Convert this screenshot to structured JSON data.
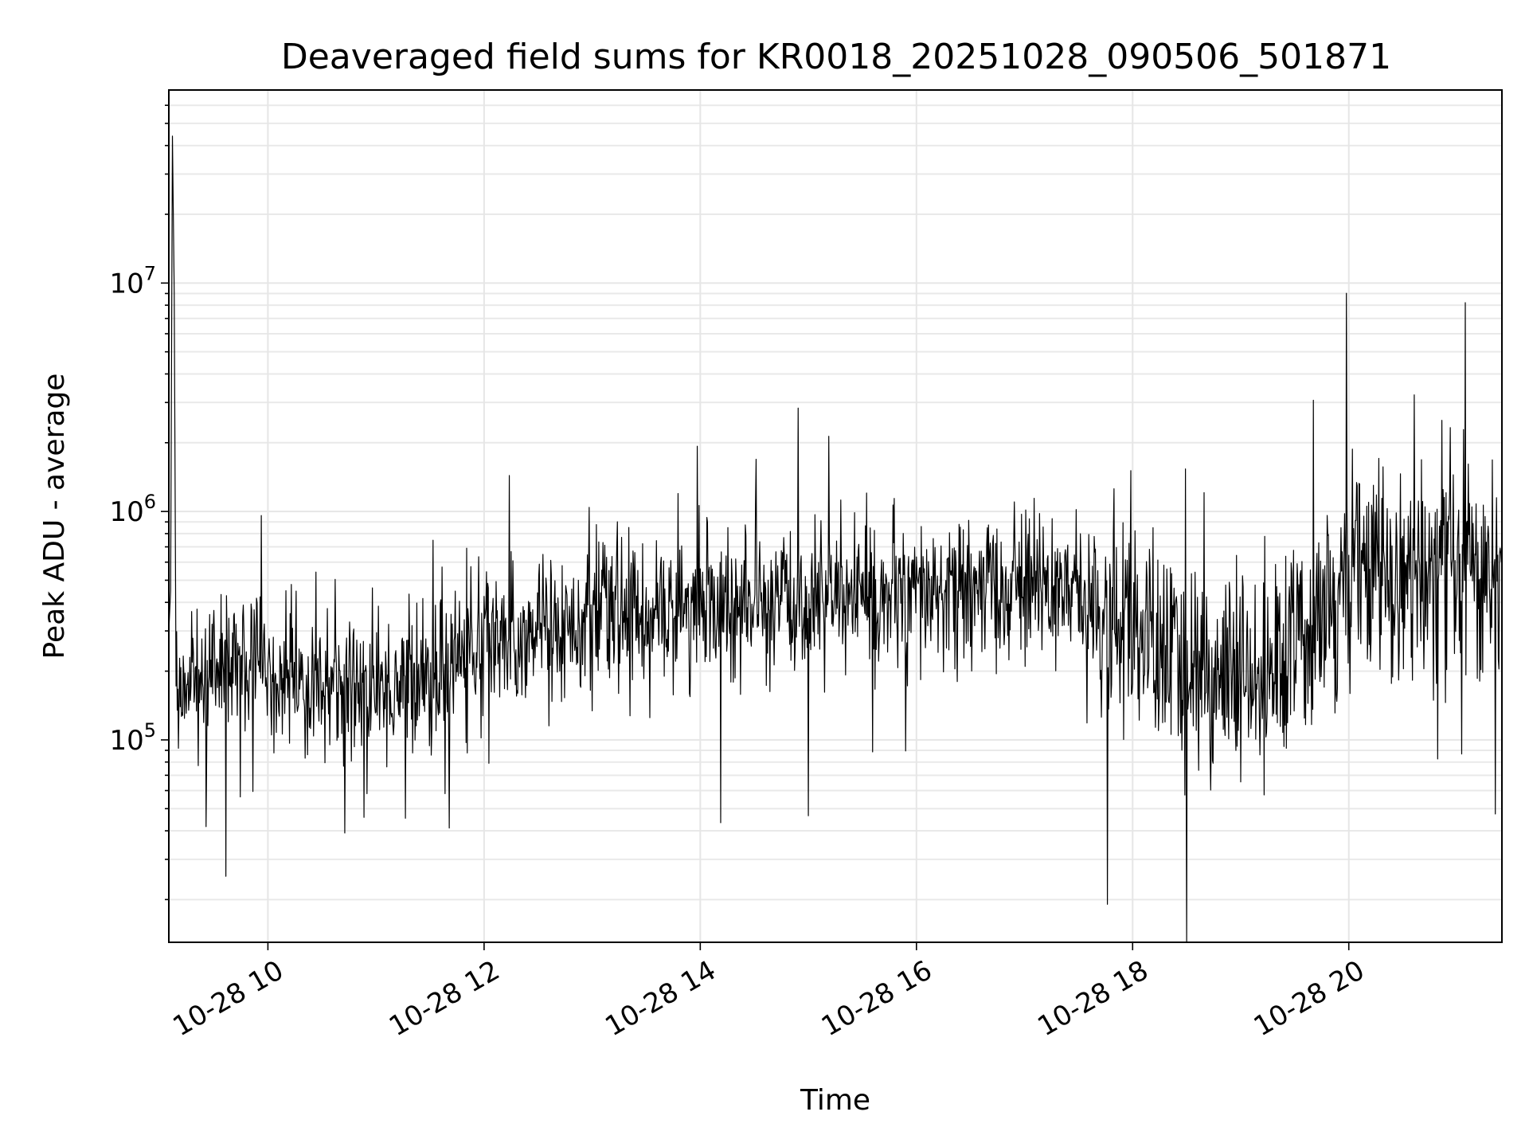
{
  "chart_data": {
    "type": "line",
    "title": "Deaveraged field sums for KR0018_20251028_090506_501871",
    "xlabel": "Time",
    "ylabel": "Peak ADU - average",
    "xlim": [
      "2025-10-28 09:05",
      "2025-10-28 21:25"
    ],
    "ylim": [
      13000,
      70000000
    ],
    "yscale": "log",
    "grid": true,
    "x_ticks": [
      {
        "value": "2025-10-28 10:00",
        "label": "10-28 10"
      },
      {
        "value": "2025-10-28 12:00",
        "label": "10-28 12"
      },
      {
        "value": "2025-10-28 14:00",
        "label": "10-28 14"
      },
      {
        "value": "2025-10-28 16:00",
        "label": "10-28 16"
      },
      {
        "value": "2025-10-28 18:00",
        "label": "10-28 18"
      },
      {
        "value": "2025-10-28 20:00",
        "label": "10-28 20"
      }
    ],
    "y_ticks": [
      {
        "value": 100000,
        "base": "10",
        "exp": "5"
      },
      {
        "value": 1000000,
        "base": "10",
        "exp": "6"
      },
      {
        "value": 10000000,
        "base": "10",
        "exp": "7"
      }
    ],
    "series": [
      {
        "color": "#000000",
        "points": [
          [
            "2025-10-28 09:05",
            300000
          ],
          [
            "2025-10-28 09:06",
            450000
          ],
          [
            "2025-10-28 09:07",
            44000000
          ],
          [
            "2025-10-28 09:08",
            9000000
          ],
          [
            "2025-10-28 09:09",
            200000
          ],
          [
            "2025-10-28 09:15",
            180000
          ],
          [
            "2025-10-28 09:30",
            200000
          ],
          [
            "2025-10-28 09:45",
            210000
          ],
          [
            "2025-10-28 10:00",
            190000
          ],
          [
            "2025-10-28 10:15",
            185000
          ],
          [
            "2025-10-28 10:30",
            175000
          ],
          [
            "2025-10-28 10:45",
            170000
          ],
          [
            "2025-10-28 11:00",
            165000
          ],
          [
            "2025-10-28 11:15",
            175000
          ],
          [
            "2025-10-28 11:30",
            200000
          ],
          [
            "2025-10-28 11:45",
            230000
          ],
          [
            "2025-10-28 12:00",
            270000
          ],
          [
            "2025-10-28 12:30",
            310000
          ],
          [
            "2025-10-28 13:00",
            350000
          ],
          [
            "2025-10-28 13:30",
            360000
          ],
          [
            "2025-10-28 14:00",
            380000
          ],
          [
            "2025-10-28 14:30",
            380000
          ],
          [
            "2025-10-28 15:00",
            400000
          ],
          [
            "2025-10-28 15:30",
            410000
          ],
          [
            "2025-10-28 16:00",
            420000
          ],
          [
            "2025-10-28 16:30",
            440000
          ],
          [
            "2025-10-28 17:00",
            460000
          ],
          [
            "2025-10-28 17:30",
            450000
          ],
          [
            "2025-10-28 17:50",
            350000
          ],
          [
            "2025-10-28 18:00",
            300000
          ],
          [
            "2025-10-28 18:30",
            200000
          ],
          [
            "2025-10-28 19:00",
            180000
          ],
          [
            "2025-10-28 19:15",
            150000
          ],
          [
            "2025-10-28 19:30",
            250000
          ],
          [
            "2025-10-28 19:45",
            350000
          ],
          [
            "2025-10-28 20:00",
            500000
          ],
          [
            "2025-10-28 20:30",
            550000
          ],
          [
            "2025-10-28 21:00",
            500000
          ],
          [
            "2025-10-28 21:25",
            600000
          ]
        ]
      }
    ]
  }
}
